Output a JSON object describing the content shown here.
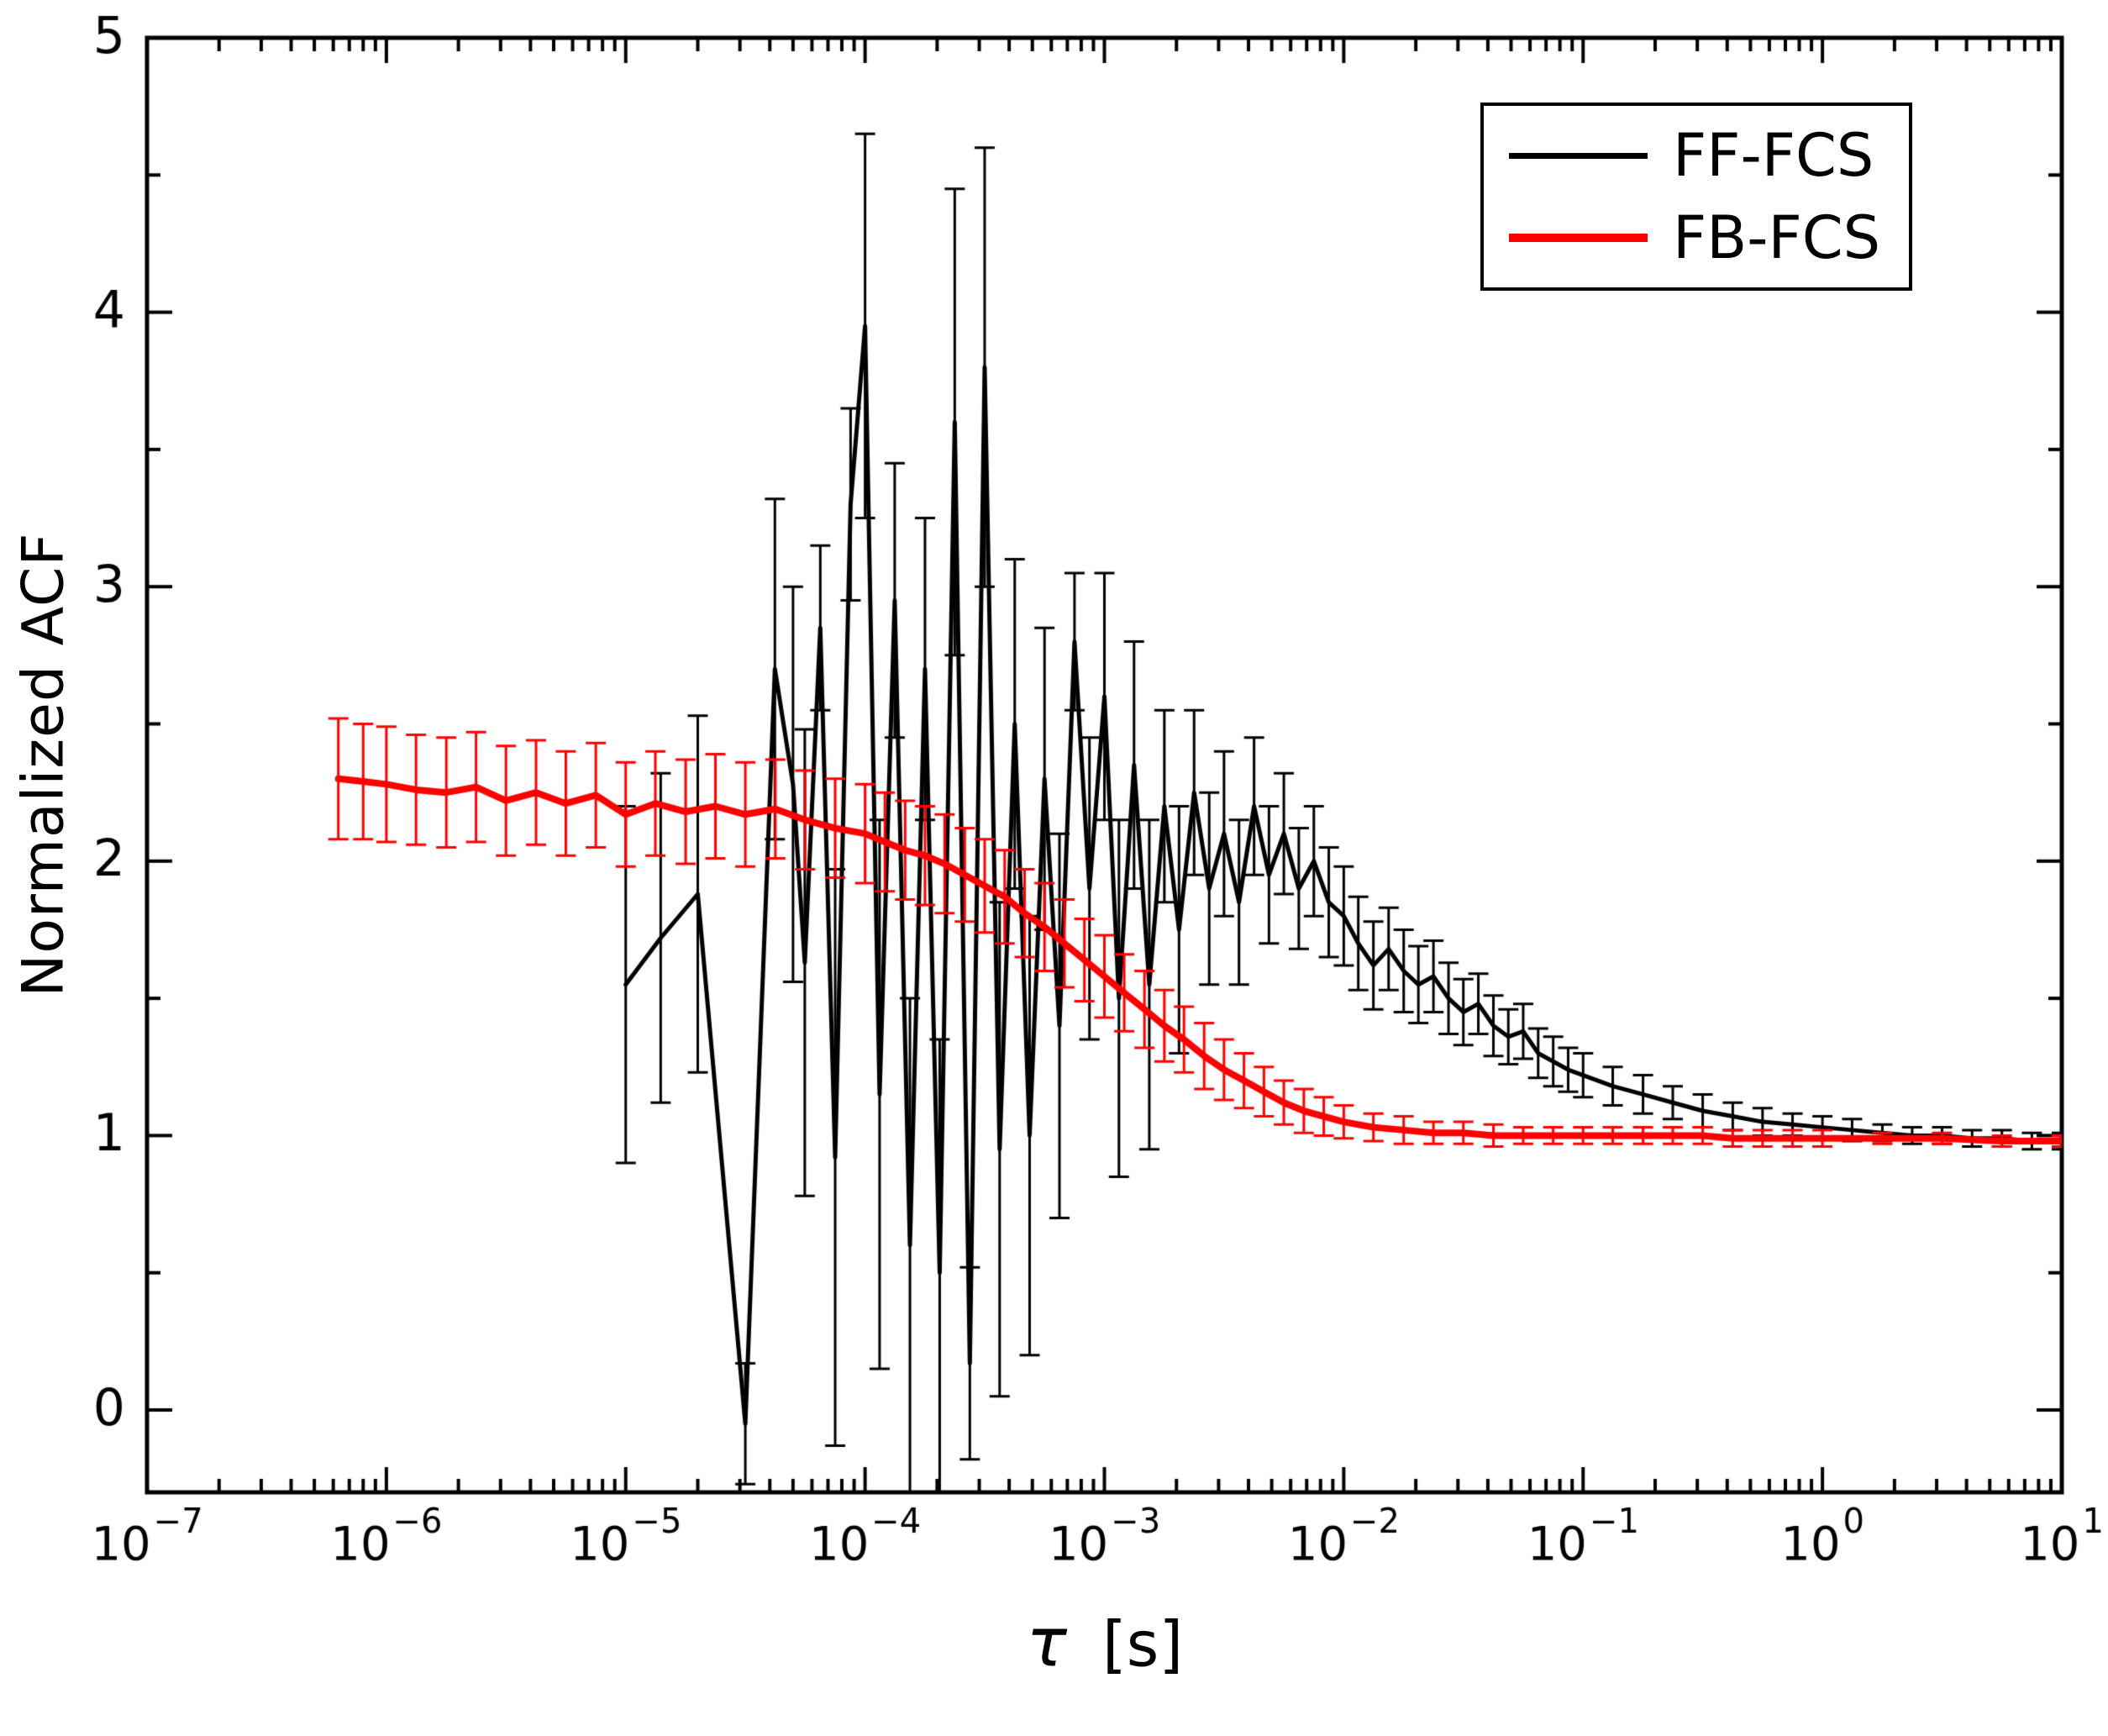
{
  "figure": {
    "description": "Normalized autocorrelation function curves from FF-FCS and FB-FCS measurements with error bars, log time axis"
  },
  "chart_data": {
    "type": "line",
    "title": "",
    "xlabel_symbol": "τ",
    "xlabel_unit": "[s]",
    "ylabel": "Normalized ACF",
    "x_scale": "log",
    "x_tick_base": 10,
    "x_tick_exponents": [
      -7,
      -6,
      -5,
      -4,
      -3,
      -2,
      -1,
      0,
      1
    ],
    "xlim_exponents": [
      -7,
      1
    ],
    "ylim": [
      -0.3,
      5
    ],
    "y_ticks": [
      0,
      1,
      2,
      3,
      4,
      5
    ],
    "grid": false,
    "legend_position": "top-right",
    "frame_color": "#000000",
    "background": "#ffffff",
    "series": [
      {
        "name": "FF-FCS",
        "color": "#000000",
        "line_width": 5,
        "points": [
          [
            1e-05,
            1.55,
            0.65
          ],
          [
            1.4e-05,
            1.72,
            0.6
          ],
          [
            2e-05,
            1.88,
            0.65
          ],
          [
            3.16e-05,
            -0.05,
            0.22
          ],
          [
            4.2e-05,
            2.7,
            0.62
          ],
          [
            5e-05,
            2.28,
            0.72
          ],
          [
            5.6e-05,
            1.63,
            0.85
          ],
          [
            6.5e-05,
            2.85,
            0.3
          ],
          [
            7.5e-05,
            0.92,
            1.05
          ],
          [
            8.7e-05,
            3.3,
            0.35
          ],
          [
            0.0001,
            3.95,
            0.7
          ],
          [
            0.000115,
            1.15,
            1.0
          ],
          [
            0.000133,
            2.95,
            0.5
          ],
          [
            0.000154,
            0.6,
            0.9
          ],
          [
            0.000178,
            2.7,
            0.55
          ],
          [
            0.000205,
            0.5,
            0.85
          ],
          [
            0.000237,
            3.6,
            0.85
          ],
          [
            0.000274,
            0.17,
            0.35
          ],
          [
            0.000316,
            3.8,
            0.8
          ],
          [
            0.000365,
            0.95,
            0.9
          ],
          [
            0.000422,
            2.5,
            0.6
          ],
          [
            0.000487,
            1.0,
            0.8
          ],
          [
            0.000562,
            2.3,
            0.55
          ],
          [
            0.000649,
            1.4,
            0.7
          ],
          [
            0.00075,
            2.8,
            0.25
          ],
          [
            0.000866,
            1.9,
            0.55
          ],
          [
            0.001,
            2.6,
            0.45
          ],
          [
            0.00115,
            1.5,
            0.65
          ],
          [
            0.00133,
            2.35,
            0.45
          ],
          [
            0.00154,
            1.55,
            0.6
          ],
          [
            0.00178,
            2.2,
            0.35
          ],
          [
            0.00205,
            1.75,
            0.45
          ],
          [
            0.00237,
            2.25,
            0.3
          ],
          [
            0.00274,
            1.9,
            0.35
          ],
          [
            0.00316,
            2.1,
            0.3
          ],
          [
            0.00365,
            1.85,
            0.3
          ],
          [
            0.00422,
            2.2,
            0.25
          ],
          [
            0.00487,
            1.95,
            0.25
          ],
          [
            0.00562,
            2.1,
            0.22
          ],
          [
            0.00649,
            1.9,
            0.22
          ],
          [
            0.0075,
            2.0,
            0.2
          ],
          [
            0.00866,
            1.85,
            0.2
          ],
          [
            0.01,
            1.8,
            0.18
          ],
          [
            0.0115,
            1.7,
            0.17
          ],
          [
            0.0133,
            1.62,
            0.16
          ],
          [
            0.0154,
            1.68,
            0.15
          ],
          [
            0.0178,
            1.6,
            0.15
          ],
          [
            0.0205,
            1.55,
            0.14
          ],
          [
            0.0237,
            1.58,
            0.13
          ],
          [
            0.0274,
            1.5,
            0.13
          ],
          [
            0.0316,
            1.45,
            0.12
          ],
          [
            0.0365,
            1.48,
            0.11
          ],
          [
            0.0422,
            1.4,
            0.11
          ],
          [
            0.0487,
            1.36,
            0.1
          ],
          [
            0.0562,
            1.38,
            0.1
          ],
          [
            0.0649,
            1.3,
            0.09
          ],
          [
            0.075,
            1.27,
            0.09
          ],
          [
            0.0866,
            1.24,
            0.08
          ],
          [
            0.1,
            1.22,
            0.08
          ],
          [
            0.133,
            1.18,
            0.07
          ],
          [
            0.178,
            1.15,
            0.07
          ],
          [
            0.237,
            1.12,
            0.06
          ],
          [
            0.316,
            1.09,
            0.06
          ],
          [
            0.422,
            1.07,
            0.05
          ],
          [
            0.562,
            1.05,
            0.05
          ],
          [
            0.75,
            1.04,
            0.04
          ],
          [
            1.0,
            1.03,
            0.04
          ],
          [
            1.33,
            1.02,
            0.04
          ],
          [
            1.78,
            1.01,
            0.03
          ],
          [
            2.37,
            1.0,
            0.03
          ],
          [
            3.16,
            1.0,
            0.03
          ],
          [
            4.22,
            0.99,
            0.03
          ],
          [
            5.62,
            0.99,
            0.03
          ],
          [
            7.5,
            0.98,
            0.03
          ],
          [
            10,
            0.98,
            0.03
          ]
        ]
      },
      {
        "name": "FB-FCS",
        "color": "#ff0000",
        "line_width": 8,
        "points": [
          [
            6.3e-07,
            2.3,
            0.22
          ],
          [
            8e-07,
            2.29,
            0.21
          ],
          [
            1e-06,
            2.28,
            0.21
          ],
          [
            1.33e-06,
            2.26,
            0.2
          ],
          [
            1.78e-06,
            2.25,
            0.2
          ],
          [
            2.37e-06,
            2.27,
            0.2
          ],
          [
            3.16e-06,
            2.22,
            0.2
          ],
          [
            4.22e-06,
            2.25,
            0.19
          ],
          [
            5.62e-06,
            2.21,
            0.19
          ],
          [
            7.5e-06,
            2.24,
            0.19
          ],
          [
            1e-05,
            2.17,
            0.19
          ],
          [
            1.33e-05,
            2.21,
            0.19
          ],
          [
            1.78e-05,
            2.18,
            0.19
          ],
          [
            2.37e-05,
            2.2,
            0.19
          ],
          [
            3.16e-05,
            2.17,
            0.19
          ],
          [
            4.22e-05,
            2.19,
            0.18
          ],
          [
            5.62e-05,
            2.15,
            0.18
          ],
          [
            7.5e-05,
            2.12,
            0.18
          ],
          [
            0.0001,
            2.1,
            0.18
          ],
          [
            0.000121,
            2.07,
            0.18
          ],
          [
            0.000147,
            2.04,
            0.18
          ],
          [
            0.000178,
            2.02,
            0.18
          ],
          [
            0.000215,
            1.99,
            0.18
          ],
          [
            0.000261,
            1.95,
            0.17
          ],
          [
            0.000316,
            1.91,
            0.17
          ],
          [
            0.000383,
            1.87,
            0.17
          ],
          [
            0.000464,
            1.81,
            0.16
          ],
          [
            0.000562,
            1.76,
            0.16
          ],
          [
            0.000681,
            1.7,
            0.16
          ],
          [
            0.000825,
            1.64,
            0.15
          ],
          [
            0.001,
            1.58,
            0.15
          ],
          [
            0.00121,
            1.52,
            0.14
          ],
          [
            0.00147,
            1.46,
            0.14
          ],
          [
            0.00178,
            1.4,
            0.13
          ],
          [
            0.00215,
            1.35,
            0.12
          ],
          [
            0.00261,
            1.29,
            0.12
          ],
          [
            0.00316,
            1.24,
            0.11
          ],
          [
            0.00383,
            1.2,
            0.1
          ],
          [
            0.00464,
            1.16,
            0.09
          ],
          [
            0.00562,
            1.12,
            0.08
          ],
          [
            0.00681,
            1.09,
            0.08
          ],
          [
            0.00825,
            1.07,
            0.07
          ],
          [
            0.01,
            1.05,
            0.06
          ],
          [
            0.0133,
            1.03,
            0.05
          ],
          [
            0.0178,
            1.02,
            0.05
          ],
          [
            0.0237,
            1.01,
            0.04
          ],
          [
            0.0316,
            1.01,
            0.04
          ],
          [
            0.0422,
            1.0,
            0.04
          ],
          [
            0.0562,
            1.0,
            0.03
          ],
          [
            0.075,
            1.0,
            0.03
          ],
          [
            0.1,
            1.0,
            0.03
          ],
          [
            0.133,
            1.0,
            0.03
          ],
          [
            0.178,
            1.0,
            0.03
          ],
          [
            0.237,
            1.0,
            0.03
          ],
          [
            0.316,
            1.0,
            0.03
          ],
          [
            0.422,
            0.99,
            0.03
          ],
          [
            0.562,
            0.99,
            0.03
          ],
          [
            0.75,
            0.99,
            0.03
          ],
          [
            1.0,
            0.99,
            0.03
          ],
          [
            1.78,
            0.99,
            0.02
          ],
          [
            3.16,
            0.99,
            0.02
          ],
          [
            5.62,
            0.98,
            0.02
          ],
          [
            10,
            0.98,
            0.02
          ]
        ]
      }
    ]
  }
}
